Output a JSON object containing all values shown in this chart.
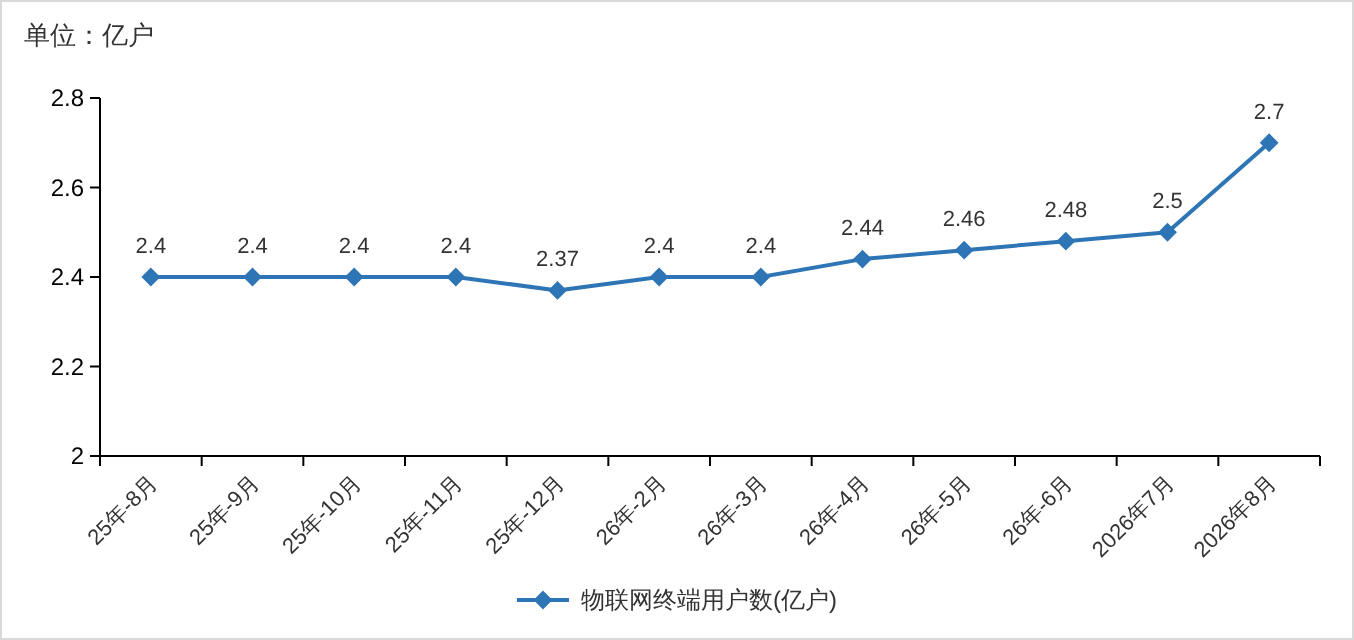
{
  "chart_data": {
    "type": "line",
    "ylabel": "单位：亿户",
    "categories": [
      "25年-8月",
      "25年-9月",
      "25年-10月",
      "25年-11月",
      "25年-12月",
      "26年-2月",
      "26年-3月",
      "26年-4月",
      "26年-5月",
      "26年-6月",
      "2026年7月",
      "2026年8月"
    ],
    "series": [
      {
        "name": "物联网终端用户数(亿户)",
        "color": "#2e75b6",
        "values": [
          2.4,
          2.4,
          2.4,
          2.4,
          2.37,
          2.4,
          2.4,
          2.44,
          2.46,
          2.48,
          2.5,
          2.7
        ]
      }
    ],
    "ylim": [
      2,
      2.8
    ],
    "yticks": [
      2,
      2.2,
      2.4,
      2.6,
      2.8
    ],
    "grid": false,
    "legend": "bottom",
    "marker": "diamond",
    "line_style": "solid",
    "data_labels": true
  }
}
